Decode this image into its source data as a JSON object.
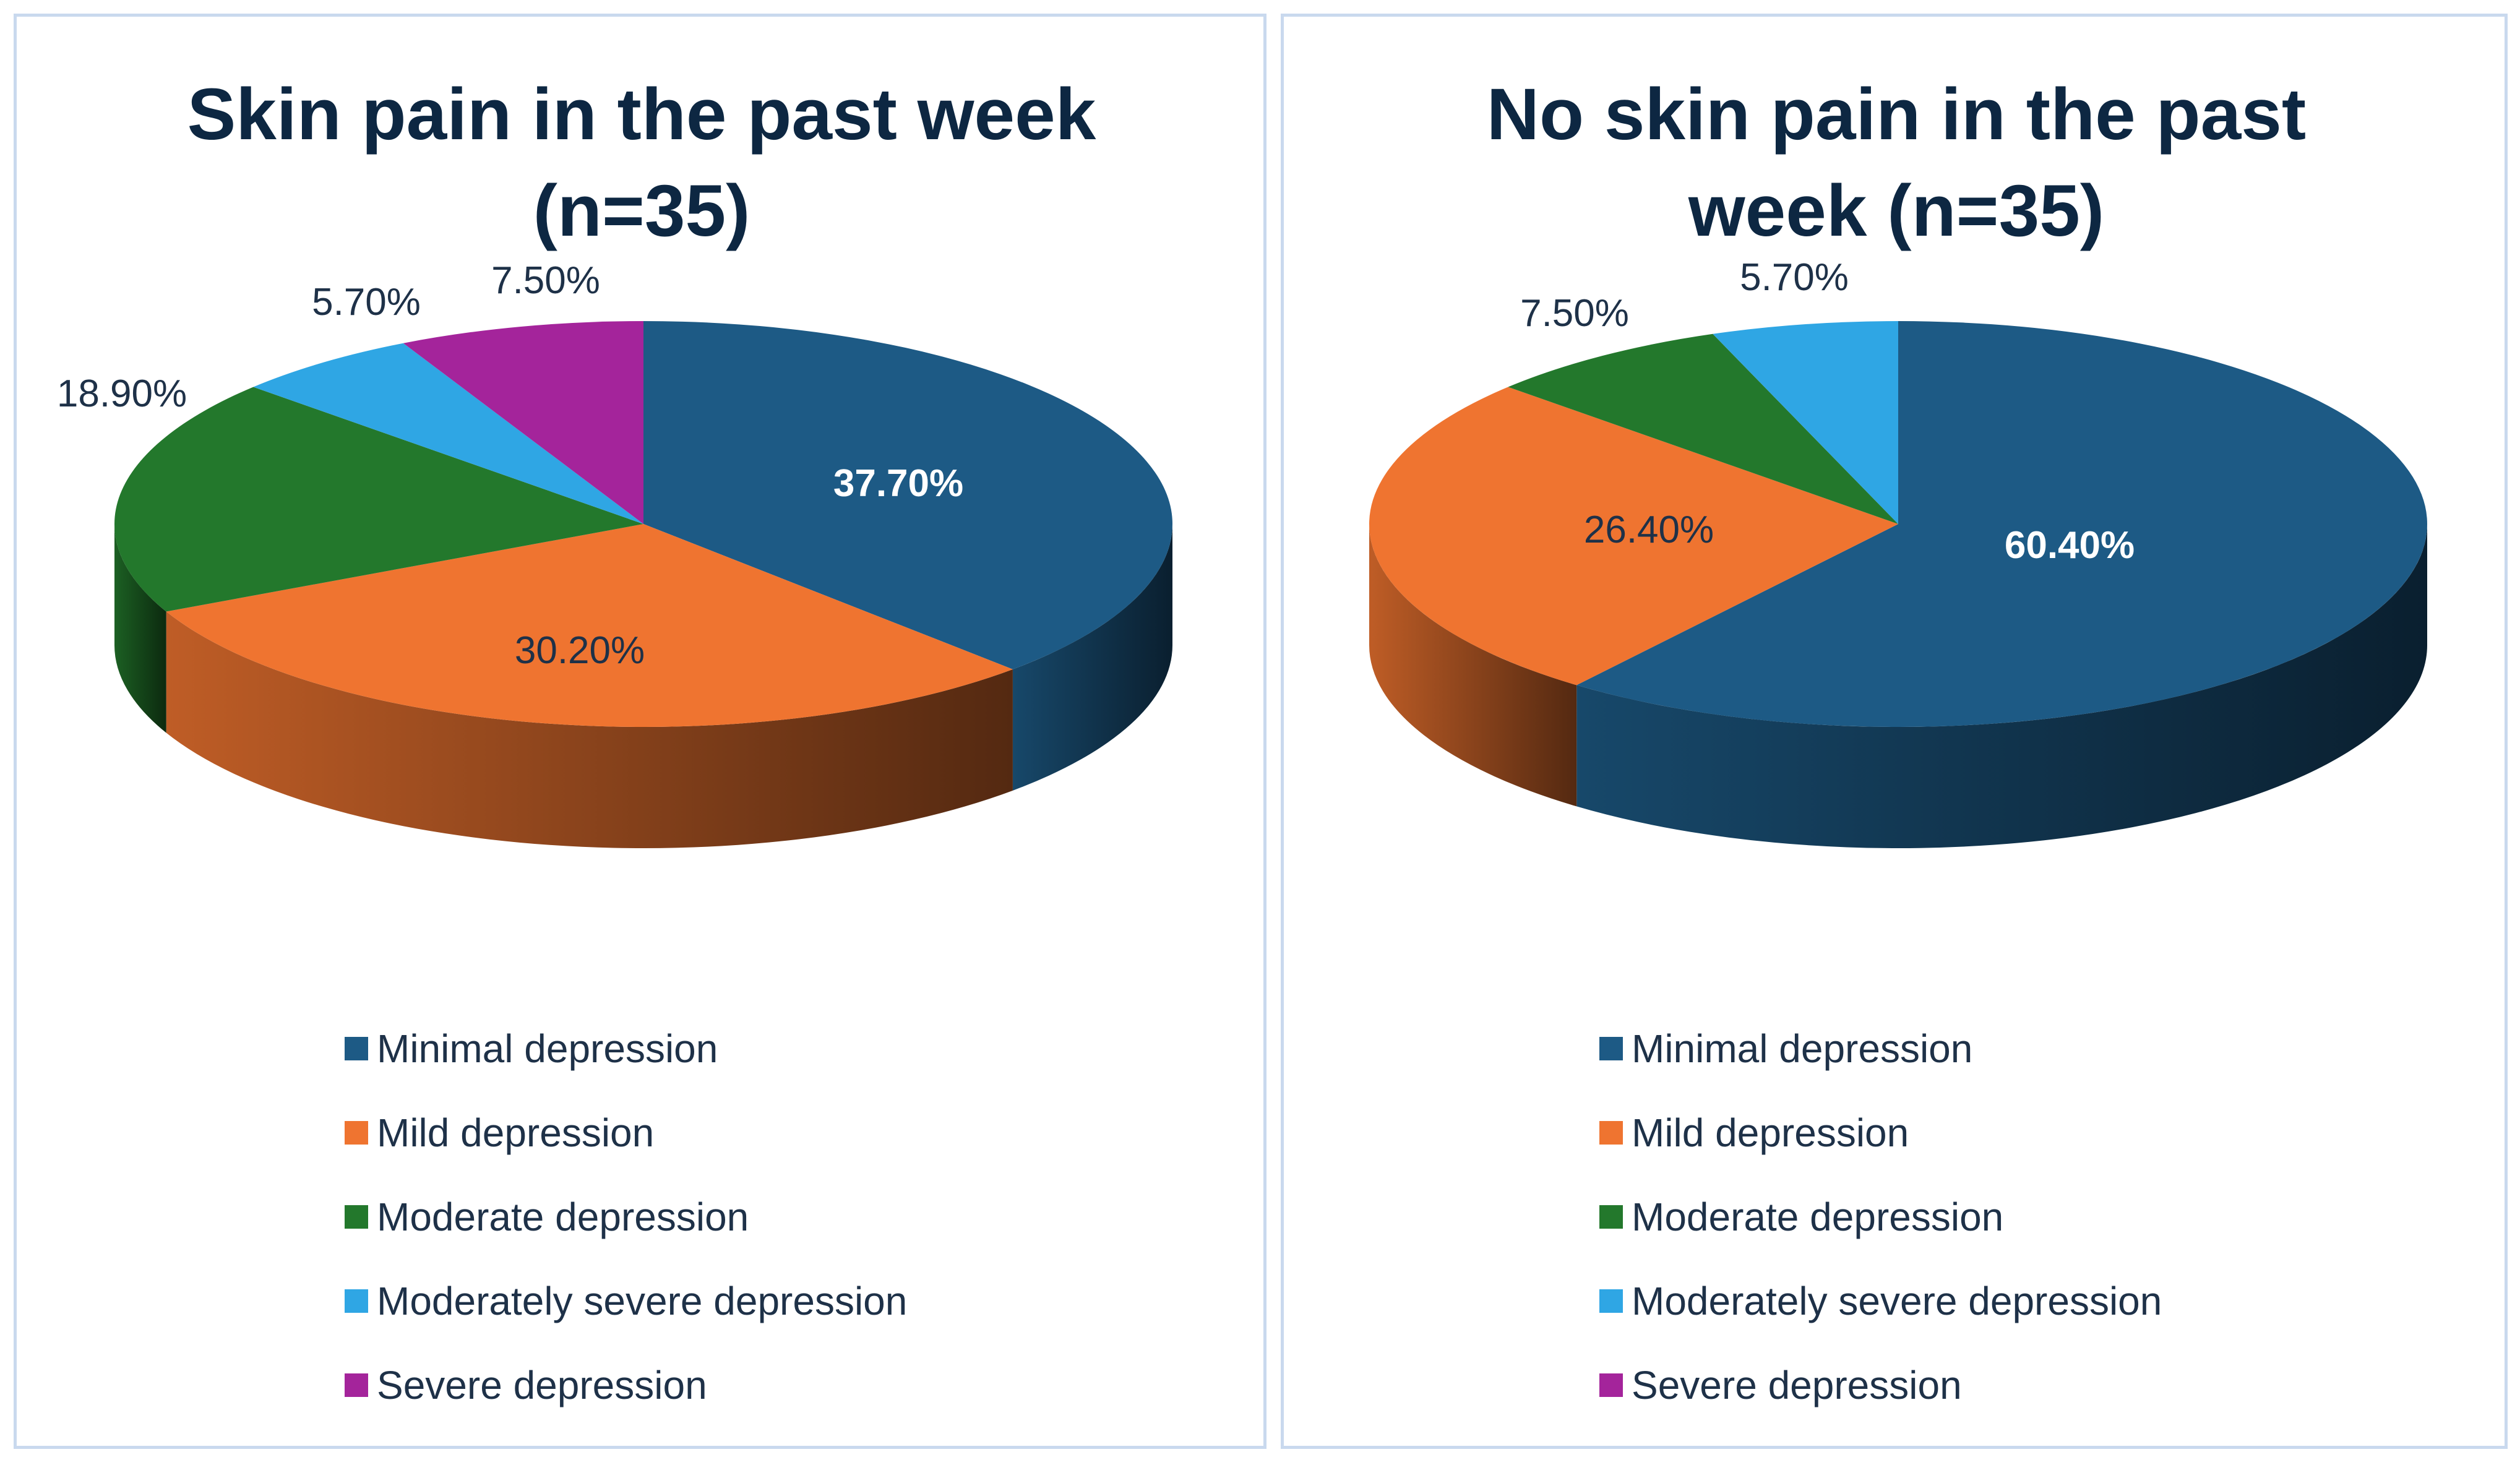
{
  "chart_data": [
    {
      "type": "pie",
      "title": "Skin pain in the past week (n=35)",
      "categories": [
        "Minimal depression",
        "Mild depression",
        "Moderate depression",
        "Moderately severe depression",
        "Severe depression"
      ],
      "values": [
        37.7,
        30.2,
        18.9,
        5.7,
        7.5
      ],
      "value_labels": [
        "37.70%",
        "30.20%",
        "18.90%",
        "5.70%",
        "7.50%"
      ],
      "legend_position": "bottom"
    },
    {
      "type": "pie",
      "title": "No skin pain in the past week (n=35)",
      "categories": [
        "Minimal depression",
        "Mild depression",
        "Moderate depression",
        "Moderately severe depression",
        "Severe depression"
      ],
      "values": [
        60.4,
        26.4,
        7.5,
        5.7,
        0
      ],
      "value_labels": [
        "60.40%",
        "26.40%",
        "7.50%",
        "5.70%",
        ""
      ],
      "legend_position": "bottom"
    }
  ],
  "colors": {
    "Minimal depression": "#1d5a85",
    "Mild depression": "#ef7430",
    "Moderate depression": "#23782c",
    "Moderately severe depression": "#2fa6e4",
    "Severe depression": "#a4249b"
  }
}
